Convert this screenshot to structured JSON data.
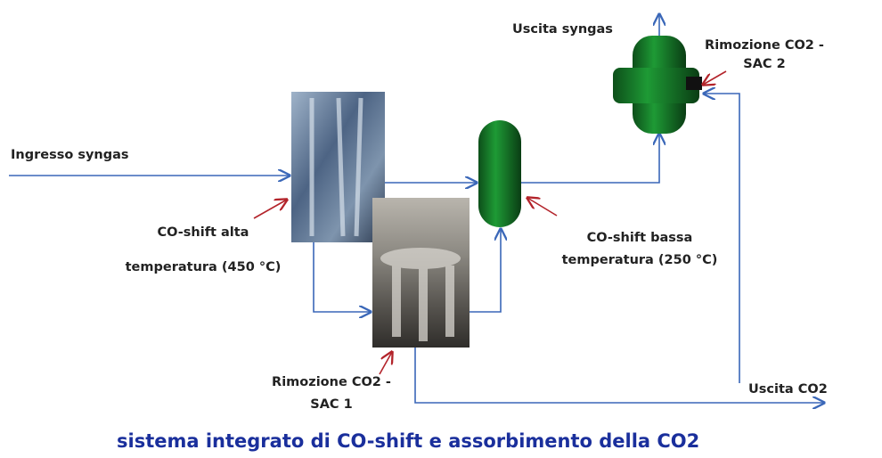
{
  "labels": {
    "syngas_out": "Uscita syngas",
    "sac2": [
      "Rimozione CO2 -",
      "SAC 2"
    ],
    "syngas_in": "Ingresso syngas",
    "ht_shift": [
      "CO-shift alta",
      "temperatura (450 °C)"
    ],
    "lt_shift": [
      "CO-shift bassa",
      "temperatura (250 °C)"
    ],
    "sac1": [
      "Rimozione CO2 -",
      "SAC 1"
    ],
    "co2_out": "Uscita CO2"
  },
  "caption": "sistema integrato di CO-shift e assorbimento della CO2"
}
